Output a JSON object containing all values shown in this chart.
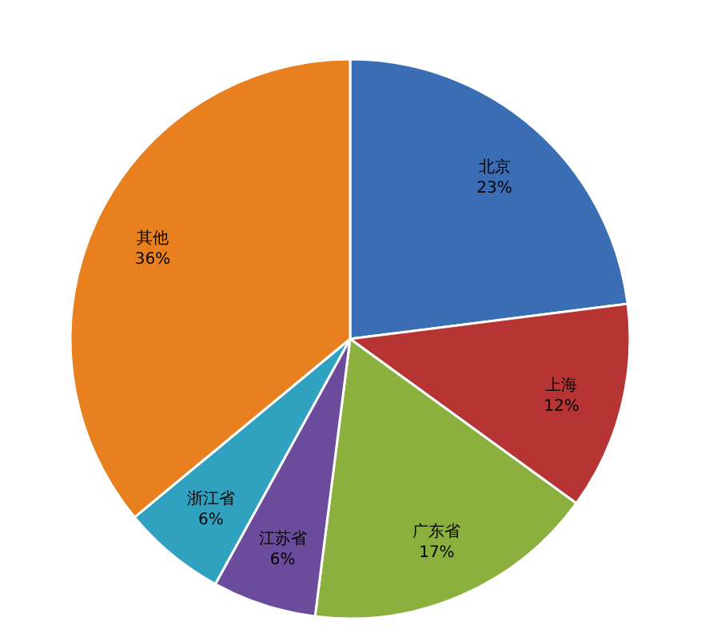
{
  "chart_data": {
    "type": "pie",
    "categories": [
      "北京",
      "上海",
      "广东省",
      "江苏省",
      "浙江省",
      "其他"
    ],
    "values": [
      23,
      12,
      17,
      6,
      6,
      36
    ],
    "value_labels": [
      "23%",
      "12%",
      "17%",
      "6%",
      "6%",
      "36%"
    ],
    "colors": [
      "#3b6db4",
      "#b63433",
      "#8cb03e",
      "#6b4b9b",
      "#31a1c0",
      "#e8801f"
    ]
  }
}
